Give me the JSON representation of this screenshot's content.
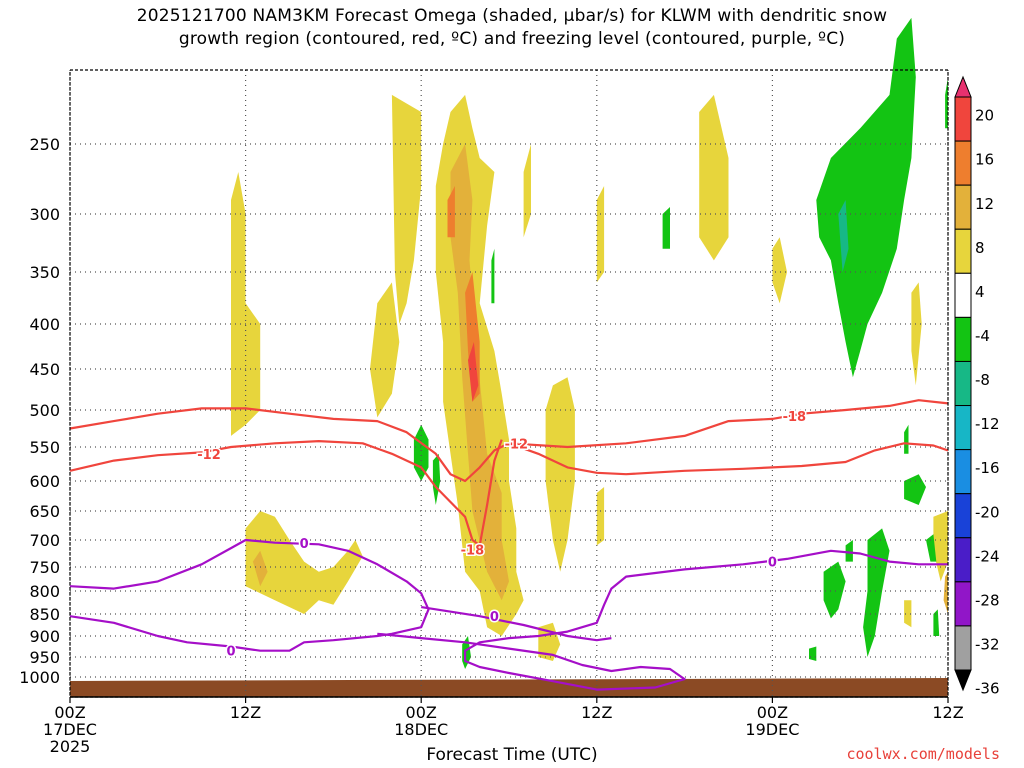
{
  "title": {
    "line1": "2025121700 NAM3KM Forecast Omega (shaded, μbar/s) for KLWM with dendritic snow",
    "line2": "growth region (contoured, red, ºC) and freezing level (contoured, purple, ºC)"
  },
  "credit": "coolwx.com/models",
  "chart_data": {
    "type": "heatmap",
    "xlabel": "Forecast Time (UTC)",
    "x_ticks": [
      {
        "hour": 0,
        "label": "00Z",
        "sub": "17DEC",
        "sub2": "2025"
      },
      {
        "hour": 12,
        "label": "12Z",
        "sub": "",
        "sub2": ""
      },
      {
        "hour": 24,
        "label": "00Z",
        "sub": "18DEC",
        "sub2": ""
      },
      {
        "hour": 36,
        "label": "12Z",
        "sub": "",
        "sub2": ""
      },
      {
        "hour": 48,
        "label": "00Z",
        "sub": "19DEC",
        "sub2": ""
      },
      {
        "hour": 60,
        "label": "12Z",
        "sub": "",
        "sub2": ""
      }
    ],
    "xlim": [
      0,
      60
    ],
    "ylim": [
      1030,
      200
    ],
    "y_ticks": [
      250,
      300,
      350,
      400,
      450,
      500,
      550,
      600,
      650,
      700,
      750,
      800,
      850,
      900,
      950,
      1000
    ],
    "colorbar": {
      "levels": [
        20,
        16,
        12,
        8,
        4,
        -4,
        -8,
        -12,
        -16,
        -20,
        -24,
        -28,
        -32,
        -36
      ],
      "colors": [
        "#e8316f",
        "#f0453d",
        "#ee7e2e",
        "#e3b13a",
        "#e7d53c",
        "#ffffff",
        "#13c413",
        "#17b886",
        "#17b6c6",
        "#1a8ee2",
        "#1942d8",
        "#4a1dc8",
        "#9116c8",
        "#a0a0a0",
        "#000000"
      ]
    },
    "contours": {
      "dgz_minus12": {
        "label": "-12",
        "color": "#f0453d",
        "points": [
          [
            0,
            585
          ],
          [
            3,
            570
          ],
          [
            6,
            562
          ],
          [
            9,
            558
          ],
          [
            11,
            550
          ],
          [
            14,
            545
          ],
          [
            17,
            542
          ],
          [
            20,
            545
          ],
          [
            22,
            560
          ],
          [
            24,
            580
          ],
          [
            25,
            610
          ],
          [
            26,
            635
          ],
          [
            27,
            660
          ],
          [
            27.5,
            700
          ],
          [
            28,
            710
          ],
          [
            28.5,
            640
          ],
          [
            29,
            570
          ],
          [
            29.5,
            540
          ]
        ]
      },
      "dgz_minus18": {
        "label": "-18",
        "color": "#f0453d",
        "points": [
          [
            0,
            525
          ],
          [
            3,
            515
          ],
          [
            6,
            505
          ],
          [
            9,
            498
          ],
          [
            12,
            498
          ],
          [
            15,
            505
          ],
          [
            18,
            512
          ],
          [
            21,
            515
          ],
          [
            23,
            530
          ],
          [
            25,
            560
          ],
          [
            26,
            590
          ],
          [
            27,
            600
          ],
          [
            28,
            580
          ],
          [
            29,
            555
          ],
          [
            30,
            545
          ],
          [
            34,
            550
          ],
          [
            38,
            545
          ],
          [
            42,
            535
          ],
          [
            45,
            515
          ],
          [
            48,
            512
          ],
          [
            50,
            505
          ],
          [
            53,
            500
          ],
          [
            56,
            495
          ],
          [
            58,
            488
          ],
          [
            60,
            492
          ]
        ]
      },
      "dgz_upper": {
        "label": "",
        "color": "#f0453d",
        "points": [
          [
            30,
            545
          ],
          [
            32,
            560
          ],
          [
            34,
            580
          ],
          [
            36,
            588
          ],
          [
            38,
            590
          ],
          [
            42,
            585
          ],
          [
            46,
            582
          ],
          [
            50,
            578
          ],
          [
            53,
            572
          ],
          [
            55,
            555
          ],
          [
            57,
            545
          ],
          [
            59,
            548
          ],
          [
            60,
            555
          ]
        ]
      },
      "freezing_level_0": {
        "label": "0",
        "color": "#a50fc8",
        "points": [
          [
            0,
            790
          ],
          [
            3,
            795
          ],
          [
            6,
            780
          ],
          [
            9,
            745
          ],
          [
            11,
            715
          ],
          [
            12,
            700
          ],
          [
            14,
            705
          ],
          [
            17,
            708
          ],
          [
            19,
            720
          ],
          [
            21,
            745
          ],
          [
            23,
            780
          ],
          [
            24,
            805
          ],
          [
            24.5,
            840
          ],
          [
            24,
            880
          ],
          [
            22,
            895
          ],
          [
            21,
            900
          ],
          [
            18,
            910
          ],
          [
            16,
            915
          ],
          [
            15,
            935
          ],
          [
            13,
            935
          ],
          [
            11,
            925
          ],
          [
            8,
            915
          ],
          [
            6,
            900
          ],
          [
            3,
            870
          ],
          [
            0,
            855
          ]
        ]
      },
      "freezing_level_0b": {
        "label": "0",
        "color": "#a50fc8",
        "points": [
          [
            21,
            895
          ],
          [
            24,
            905
          ],
          [
            27,
            915
          ],
          [
            30,
            930
          ],
          [
            33,
            945
          ],
          [
            35,
            970
          ],
          [
            37,
            985
          ],
          [
            39,
            975
          ],
          [
            41,
            980
          ],
          [
            42,
            1005
          ],
          [
            40,
            1025
          ],
          [
            36,
            1030
          ],
          [
            33,
            1010
          ],
          [
            30,
            990
          ],
          [
            28,
            975
          ],
          [
            27,
            960
          ],
          [
            27,
            935
          ],
          [
            28,
            915
          ],
          [
            30,
            905
          ],
          [
            32,
            900
          ],
          [
            34,
            890
          ],
          [
            36,
            870
          ],
          [
            36.5,
            830
          ],
          [
            37,
            795
          ],
          [
            38,
            770
          ],
          [
            42,
            755
          ],
          [
            46,
            745
          ],
          [
            49,
            735
          ],
          [
            52,
            720
          ],
          [
            54,
            725
          ],
          [
            56,
            740
          ],
          [
            58,
            745
          ],
          [
            60,
            745
          ]
        ]
      },
      "freezing_level_0c": {
        "label": "",
        "color": "#a50fc8",
        "points": [
          [
            24,
            835
          ],
          [
            28,
            855
          ],
          [
            31,
            875
          ],
          [
            34,
            900
          ],
          [
            36,
            910
          ],
          [
            37,
            905
          ]
        ]
      }
    }
  },
  "colorbar_labels": [
    "20",
    "16",
    "12",
    "8",
    "4",
    "-4",
    "-8",
    "-12",
    "-16",
    "-20",
    "-24",
    "-28",
    "-32",
    "-36"
  ],
  "contour_labels": [
    "-12",
    "-18",
    "-12",
    "-18",
    "0",
    "0",
    "0",
    "0"
  ]
}
